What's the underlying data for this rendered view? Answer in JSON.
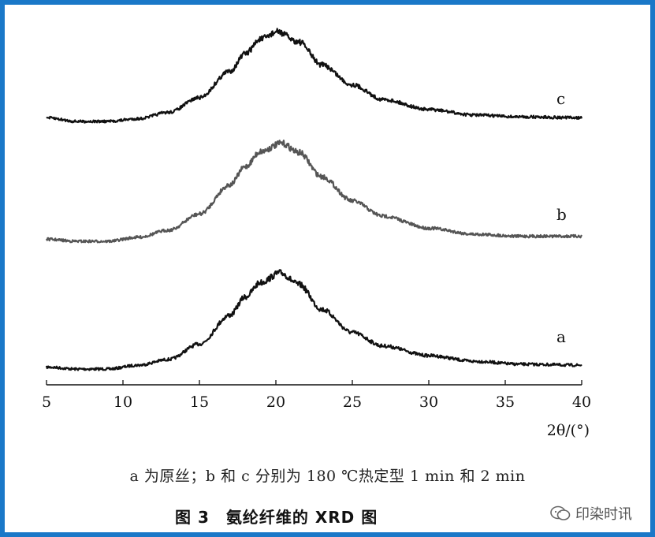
{
  "chart_data": {
    "type": "line",
    "title": "",
    "xlabel": "2θ/(°)",
    "ylabel": "",
    "xlim": [
      5,
      40
    ],
    "x_ticks": [
      "5",
      "10",
      "15",
      "20",
      "25",
      "30",
      "35",
      "40"
    ],
    "grid": false,
    "series": [
      {
        "name": "a",
        "color": "#111111",
        "peak_x": 20.3,
        "peak_rel_intensity": 1.0,
        "points": [
          [
            5,
            0.02
          ],
          [
            7,
            0.0
          ],
          [
            9,
            0.0
          ],
          [
            11,
            0.04
          ],
          [
            13,
            0.1
          ],
          [
            15,
            0.26
          ],
          [
            17,
            0.56
          ],
          [
            18,
            0.75
          ],
          [
            19,
            0.9
          ],
          [
            20.3,
            1.0
          ],
          [
            21.5,
            0.88
          ],
          [
            23,
            0.62
          ],
          [
            25,
            0.38
          ],
          [
            27,
            0.24
          ],
          [
            30,
            0.14
          ],
          [
            33,
            0.08
          ],
          [
            36,
            0.05
          ],
          [
            40,
            0.04
          ]
        ]
      },
      {
        "name": "b",
        "color": "#555555",
        "peak_x": 20.4,
        "peak_rel_intensity": 0.97,
        "points": [
          [
            5,
            0.02
          ],
          [
            7,
            0.0
          ],
          [
            9,
            0.0
          ],
          [
            11,
            0.04
          ],
          [
            13,
            0.11
          ],
          [
            15,
            0.27
          ],
          [
            17,
            0.56
          ],
          [
            18,
            0.74
          ],
          [
            19,
            0.89
          ],
          [
            20.4,
            0.97
          ],
          [
            21.5,
            0.88
          ],
          [
            23,
            0.64
          ],
          [
            25,
            0.4
          ],
          [
            27,
            0.25
          ],
          [
            30,
            0.13
          ],
          [
            33,
            0.07
          ],
          [
            36,
            0.05
          ],
          [
            40,
            0.05
          ]
        ]
      },
      {
        "name": "c",
        "color": "#111111",
        "peak_x": 20.1,
        "peak_rel_intensity": 0.98,
        "points": [
          [
            5,
            0.04
          ],
          [
            7,
            0.0
          ],
          [
            9,
            0.0
          ],
          [
            11,
            0.03
          ],
          [
            13,
            0.1
          ],
          [
            15,
            0.26
          ],
          [
            17,
            0.55
          ],
          [
            18,
            0.74
          ],
          [
            19,
            0.9
          ],
          [
            20.1,
            0.98
          ],
          [
            21.5,
            0.87
          ],
          [
            23,
            0.62
          ],
          [
            25,
            0.4
          ],
          [
            27,
            0.24
          ],
          [
            30,
            0.13
          ],
          [
            33,
            0.07
          ],
          [
            36,
            0.05
          ],
          [
            40,
            0.04
          ]
        ]
      }
    ]
  },
  "caption_note": "a 为原丝；b 和 c 分别为 180 ℃热定型 1 min 和 2 min",
  "figure_title": "图 3　氨纶纤维的 XRD 图",
  "watermark": {
    "text": "印染时讯",
    "icon": "wechat-icon"
  }
}
